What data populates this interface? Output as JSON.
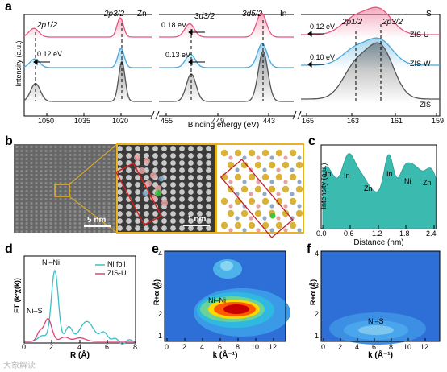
{
  "panels": {
    "a": "a",
    "b": "b",
    "c": "c",
    "d": "d",
    "e": "e",
    "f": "f"
  },
  "panel_a": {
    "ylabel": "Intensity (a.u.)",
    "xlabel": "Binding energy (eV)",
    "element_labels": [
      "Zn",
      "In",
      "S"
    ],
    "zn_peaks": [
      "2p1/2",
      "2p3/2"
    ],
    "in_peaks": [
      "3d3/2",
      "3d5/2"
    ],
    "s_peaks": [
      "2p1/2",
      "2p3/2"
    ],
    "shifts": {
      "zn": "0.12 eV",
      "in_top": "0.18 eV",
      "in_mid": "0.13 eV",
      "s_top": "0.12 eV",
      "s_mid": "0.10 eV"
    },
    "series": [
      "ZIS-U",
      "ZIS-W",
      "ZIS"
    ],
    "ticks_zn": [
      "1050",
      "1035",
      "1020"
    ],
    "ticks_in": [
      "455",
      "449",
      "443"
    ],
    "ticks_s": [
      "165",
      "163",
      "161",
      "159"
    ],
    "colors": {
      "zis_u": "#e8557f",
      "zis_w": "#4aa8d8",
      "zis": "#555555"
    }
  },
  "panel_b": {
    "scale1": "5 nm",
    "scale2": "1 nm"
  },
  "panel_c": {
    "ylabel": "Intensity (a.u.)",
    "xlabel": "Distance (nm)",
    "peak_labels": [
      "In",
      "In",
      "Zn",
      "In",
      "Ni",
      "Zn"
    ],
    "ticks": [
      "0.0",
      "0.6",
      "1.2",
      "1.8",
      "2.4"
    ],
    "fill_color": "#3bbab0"
  },
  "panel_d": {
    "ylabel": "FT (k³χ(k))",
    "xlabel": "R (Å)",
    "legend": [
      "Ni foil",
      "ZIS-U"
    ],
    "annotations": [
      "Ni–Ni",
      "Ni–S"
    ],
    "ticks": [
      "0",
      "2",
      "4",
      "6",
      "8"
    ],
    "colors": {
      "ni_foil": "#3bbfc7",
      "zis_u": "#e0407a"
    }
  },
  "panel_e": {
    "ylabel": "R+α (Å)",
    "xlabel": "k (Å⁻¹)",
    "annotation": "Ni–Ni",
    "xticks": [
      "0",
      "2",
      "4",
      "6",
      "8",
      "10",
      "12"
    ],
    "yticks": [
      "1",
      "2",
      "3",
      "4"
    ]
  },
  "panel_f": {
    "ylabel": "R+α (Å)",
    "xlabel": "k (Å⁻¹)",
    "annotation": "Ni–S",
    "xticks": [
      "0",
      "2",
      "4",
      "6",
      "8",
      "10",
      "12"
    ],
    "yticks": [
      "1",
      "2",
      "3",
      "4"
    ]
  },
  "watermark": "大象解读"
}
